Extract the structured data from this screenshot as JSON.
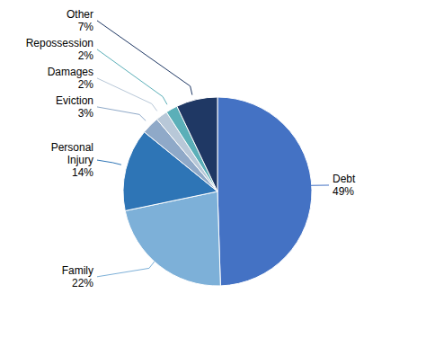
{
  "chart_data": {
    "type": "pie",
    "categories": [
      "Debt",
      "Family",
      "Personal\nInjury",
      "Eviction",
      "Damages",
      "Repossession",
      "Other"
    ],
    "values": [
      49,
      22,
      14,
      3,
      2,
      2,
      7
    ],
    "value_labels": [
      "49%",
      "22%",
      "14%",
      "3%",
      "2%",
      "2%",
      "7%"
    ],
    "colors": [
      "#4472C4",
      "#7DB0D8",
      "#2E75B6",
      "#8FA9C8",
      "#B8C8D8",
      "#5BAFB8",
      "#1F3864"
    ],
    "data_labels": true
  }
}
